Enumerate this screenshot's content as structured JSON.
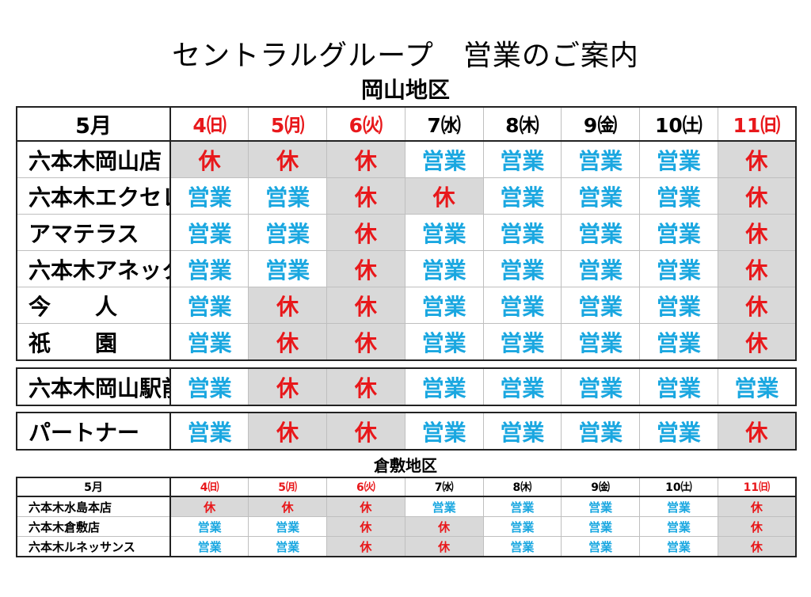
{
  "title": "セントラルグループ　営業のご案内",
  "okayama": {
    "region_label": "岡山地区",
    "month": "5月",
    "days": [
      {
        "label": "4㈰",
        "holiday": true
      },
      {
        "label": "5㈪",
        "holiday": true
      },
      {
        "label": "6㈫",
        "holiday": true
      },
      {
        "label": "7㈬",
        "holiday": false
      },
      {
        "label": "8㈭",
        "holiday": false
      },
      {
        "label": "9㈮",
        "holiday": false
      },
      {
        "label": "10㈯",
        "holiday": false
      },
      {
        "label": "11㈰",
        "holiday": true
      }
    ],
    "stores": [
      {
        "name": "六本木岡山店",
        "status": [
          "休",
          "休",
          "休",
          "営業",
          "営業",
          "営業",
          "営業",
          "休"
        ],
        "shaded": [
          true,
          true,
          true,
          false,
          false,
          false,
          false,
          true
        ]
      },
      {
        "name": "六本木エクセレント",
        "status": [
          "営業",
          "営業",
          "休",
          "休",
          "営業",
          "営業",
          "営業",
          "休"
        ],
        "shaded": [
          false,
          false,
          true,
          true,
          false,
          false,
          false,
          true
        ]
      },
      {
        "name": "アマテラス",
        "status": [
          "営業",
          "営業",
          "休",
          "営業",
          "営業",
          "営業",
          "営業",
          "休"
        ],
        "shaded": [
          false,
          false,
          true,
          false,
          false,
          false,
          false,
          true
        ]
      },
      {
        "name": "六本木アネックス",
        "status": [
          "営業",
          "営業",
          "休",
          "営業",
          "営業",
          "営業",
          "営業",
          "休"
        ],
        "shaded": [
          false,
          false,
          true,
          false,
          false,
          false,
          false,
          true
        ]
      },
      {
        "name": "今　　人",
        "status": [
          "営業",
          "休",
          "休",
          "営業",
          "営業",
          "営業",
          "営業",
          "休"
        ],
        "shaded": [
          false,
          true,
          true,
          false,
          false,
          false,
          false,
          true
        ]
      },
      {
        "name": "祇　　園",
        "status": [
          "営業",
          "休",
          "休",
          "営業",
          "営業",
          "営業",
          "営業",
          "休"
        ],
        "shaded": [
          false,
          true,
          true,
          false,
          false,
          false,
          false,
          true
        ]
      }
    ],
    "ekimae": {
      "name": "六本木岡山駅前",
      "status": [
        "営業",
        "休",
        "休",
        "営業",
        "営業",
        "営業",
        "営業",
        "営業"
      ],
      "shaded": [
        false,
        true,
        true,
        false,
        false,
        false,
        false,
        false
      ]
    },
    "partner": {
      "name": "パートナー",
      "status": [
        "営業",
        "休",
        "休",
        "営業",
        "営業",
        "営業",
        "営業",
        "休"
      ],
      "shaded": [
        false,
        true,
        true,
        false,
        false,
        false,
        false,
        true
      ]
    }
  },
  "kurashiki": {
    "region_label": "倉敷地区",
    "month": "5月",
    "days": [
      {
        "label": "4㈰",
        "holiday": true
      },
      {
        "label": "5㈪",
        "holiday": true
      },
      {
        "label": "6㈫",
        "holiday": true
      },
      {
        "label": "7㈬",
        "holiday": false
      },
      {
        "label": "8㈭",
        "holiday": false
      },
      {
        "label": "9㈮",
        "holiday": false
      },
      {
        "label": "10㈯",
        "holiday": false
      },
      {
        "label": "11㈰",
        "holiday": true
      }
    ],
    "stores": [
      {
        "name": "六本木水島本店",
        "status": [
          "休",
          "休",
          "休",
          "営業",
          "営業",
          "営業",
          "営業",
          "休"
        ],
        "shaded": [
          true,
          true,
          true,
          false,
          false,
          false,
          false,
          true
        ]
      },
      {
        "name": "六本木倉敷店",
        "status": [
          "営業",
          "営業",
          "休",
          "休",
          "営業",
          "営業",
          "営業",
          "休"
        ],
        "shaded": [
          false,
          false,
          true,
          true,
          false,
          false,
          false,
          true
        ]
      },
      {
        "name": "六本木ルネッサンス",
        "status": [
          "営業",
          "営業",
          "休",
          "休",
          "営業",
          "営業",
          "営業",
          "休"
        ],
        "shaded": [
          false,
          false,
          true,
          true,
          false,
          false,
          false,
          true
        ]
      }
    ]
  },
  "colors": {
    "open": "#1aa7e0",
    "closed": "#e8181b",
    "shade": "#d9d9d9"
  }
}
